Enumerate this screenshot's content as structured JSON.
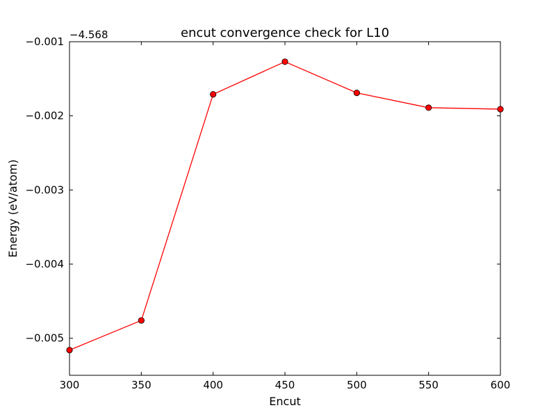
{
  "chart_data": {
    "type": "line",
    "title": "encut convergence check for L10",
    "xlabel": "Encut",
    "ylabel": "Energy (eV/atom)",
    "y_offset_label": "−4.568",
    "xlim": [
      300,
      600
    ],
    "ylim": [
      -0.0055,
      -0.001
    ],
    "x_ticks": [
      300,
      350,
      400,
      450,
      500,
      550,
      600
    ],
    "y_ticks": [
      -0.001,
      -0.002,
      -0.003,
      -0.004,
      -0.005
    ],
    "y_tick_labels": [
      "−0.001",
      "−0.002",
      "−0.003",
      "−0.004",
      "−0.005"
    ],
    "grid": false,
    "series": [
      {
        "x": [
          300,
          350,
          400,
          450,
          500,
          550,
          600
        ],
        "y": [
          -0.00516,
          -0.00476,
          -0.00171,
          -0.00127,
          -0.00169,
          -0.00189,
          -0.00191
        ],
        "color": "#ff0000",
        "marker": "circle"
      }
    ]
  }
}
